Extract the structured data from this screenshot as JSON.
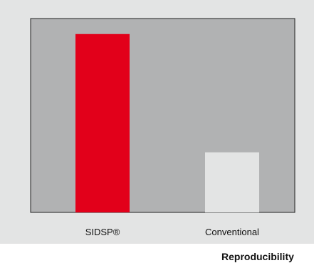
{
  "colors": {
    "panel_bg": "#e3e4e4",
    "plot_bg": "#b1b2b3",
    "bar_sidsp": "#e2001a",
    "bar_conventional": "#e3e4e4"
  },
  "chart_data": {
    "type": "bar",
    "title": "",
    "xlabel": "",
    "ylabel": "",
    "categories": [
      "SIDSP®",
      "Conventional"
    ],
    "values": [
      92,
      31
    ],
    "ylim": [
      0,
      100
    ],
    "grid": false,
    "legend": "none",
    "caption": "Reproducibility"
  }
}
